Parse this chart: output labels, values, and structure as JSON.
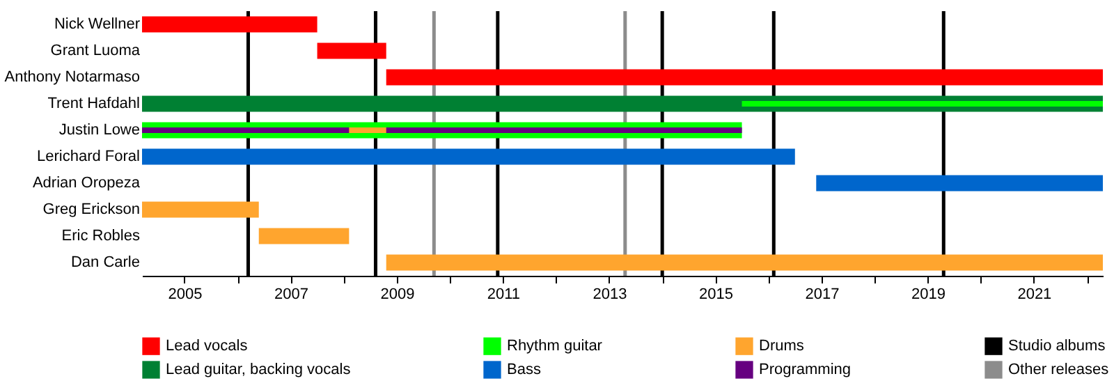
{
  "chart_data": {
    "type": "bar",
    "orientation": "horizontal",
    "legend": "bottom",
    "categories": [
      "Nick Wellner",
      "Grant Luoma",
      "Anthony Notarmaso",
      "Trent Hafdahl",
      "Justin Lowe",
      "Lerichard Foral",
      "Adrian Oropeza",
      "Greg Erickson",
      "Eric Robles",
      "Dan Carle"
    ],
    "series": [
      {
        "name": "Lead vocals",
        "color": "#ff0000",
        "base": [
          2004.2,
          2007.5,
          2008.8,
          null,
          null,
          null,
          null,
          null,
          null,
          null
        ],
        "values": [
          3.3,
          1.3,
          13.5,
          null,
          null,
          null,
          null,
          null,
          null,
          null
        ]
      },
      {
        "name": "Lead guitar, backing vocals",
        "color": "#008033",
        "base": [
          null,
          null,
          null,
          2004.2,
          null,
          null,
          null,
          null,
          null,
          null
        ],
        "values": [
          null,
          null,
          null,
          18.1,
          null,
          null,
          null,
          null,
          null,
          null
        ]
      },
      {
        "name": "Rhythm guitar",
        "color": "#00ff00",
        "base": [
          null,
          null,
          null,
          2015.5,
          2004.2,
          null,
          null,
          null,
          null,
          null
        ],
        "values": [
          null,
          null,
          null,
          6.8,
          11.3,
          null,
          null,
          null,
          null,
          null
        ]
      },
      {
        "name": "Bass",
        "color": "#0066cc",
        "base": [
          null,
          null,
          null,
          null,
          null,
          2004.2,
          2016.9,
          null,
          null,
          null
        ],
        "values": [
          null,
          null,
          null,
          null,
          null,
          12.3,
          5.4,
          null,
          null,
          null
        ]
      },
      {
        "name": "Drums",
        "color": "#ffa52e",
        "base": [
          null,
          null,
          null,
          null,
          2008.1,
          null,
          null,
          2004.2,
          2006.4,
          2008.8
        ],
        "values": [
          null,
          null,
          null,
          null,
          0.7,
          null,
          null,
          2.2,
          1.7,
          13.5
        ]
      },
      {
        "name": "Programming",
        "color": "#660080",
        "base": [
          null,
          null,
          null,
          null,
          2004.2,
          null,
          null,
          null,
          null,
          null
        ],
        "values": [
          null,
          null,
          null,
          null,
          11.3,
          null,
          null,
          null,
          null,
          null
        ]
      }
    ],
    "ref_lines": [
      {
        "axis": "x",
        "value": 2006.2,
        "label": "Studio albums",
        "color": "#000000"
      },
      {
        "axis": "x",
        "value": 2008.6,
        "color": "#000000"
      },
      {
        "axis": "x",
        "value": 2010.9,
        "color": "#000000"
      },
      {
        "axis": "x",
        "value": 2014.0,
        "color": "#000000"
      },
      {
        "axis": "x",
        "value": 2016.1,
        "color": "#000000"
      },
      {
        "axis": "x",
        "value": 2019.3,
        "color": "#000000"
      },
      {
        "axis": "x",
        "value": 2009.7,
        "label": "Other releases",
        "color": "#8c8c8c"
      },
      {
        "axis": "x",
        "value": 2013.3,
        "color": "#8c8c8c"
      }
    ],
    "xlim": [
      2004.2,
      2022.3
    ],
    "xticks": [
      2005,
      {
        "value": 2006,
        "label": null
      },
      2007,
      {
        "value": 2008,
        "label": null
      },
      2009,
      {
        "value": 2010,
        "label": null
      },
      2011,
      {
        "value": 2012,
        "label": null
      },
      2013,
      {
        "value": 2014,
        "label": null
      },
      2015,
      {
        "value": 2016,
        "label": null
      },
      2017,
      {
        "value": 2018,
        "label": null
      },
      2019,
      {
        "value": 2020,
        "label": null
      },
      2021,
      {
        "value": 2022,
        "label": null
      }
    ]
  }
}
